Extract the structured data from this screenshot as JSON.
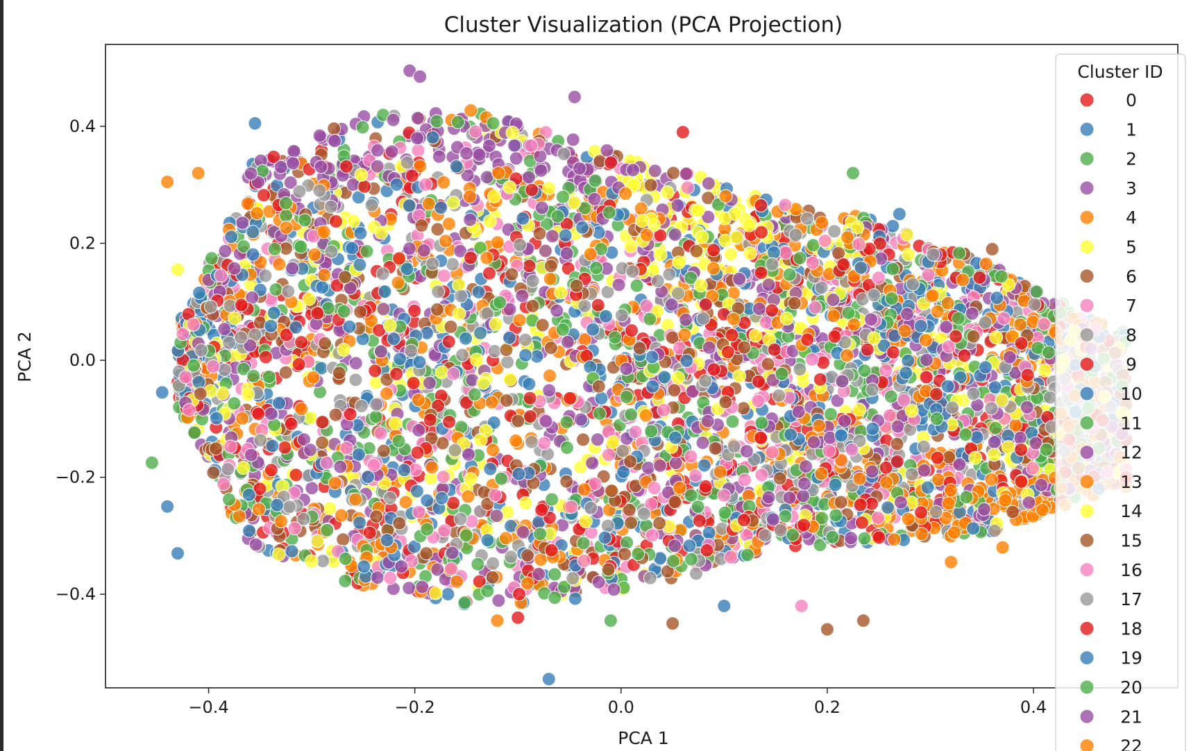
{
  "chart_data": {
    "type": "scatter",
    "title": "Cluster Visualization (PCA Projection)",
    "xlabel": "PCA 1",
    "ylabel": "PCA 2",
    "xlim": [
      -0.5,
      0.54
    ],
    "ylim": [
      -0.56,
      0.54
    ],
    "xticks": [
      -0.4,
      -0.2,
      0.0,
      0.2,
      0.4
    ],
    "xtick_labels": [
      "−0.4",
      "−0.2",
      "0.0",
      "0.2",
      "0.4"
    ],
    "yticks": [
      -0.4,
      -0.2,
      0.0,
      0.2,
      0.4
    ],
    "ytick_labels": [
      "−0.4",
      "−0.2",
      "0.0",
      "0.2",
      "0.4"
    ],
    "grid": false,
    "legend": {
      "title": "Cluster ID",
      "placement": "upper right",
      "entries": [
        "0",
        "1",
        "2",
        "3",
        "4",
        "5",
        "6",
        "7",
        "8",
        "9",
        "10",
        "11",
        "12",
        "13",
        "14",
        "15",
        "16",
        "17",
        "18",
        "19",
        "20",
        "21",
        "22"
      ]
    },
    "palette": [
      "#e41a1c",
      "#377eb8",
      "#4daf4a",
      "#984ea3",
      "#ff7f00",
      "#ffff33",
      "#a65628",
      "#f781bf",
      "#999999"
    ],
    "marker_opacity": 0.8,
    "series_note_points": "Thousands of overlapping points per cluster; representative outliers listed, the dense body is rendered procedurally within the visible extent.",
    "outliers": [
      {
        "x": -0.07,
        "y": -0.545,
        "cluster": "1"
      },
      {
        "x": -0.205,
        "y": 0.495,
        "cluster": "3"
      },
      {
        "x": -0.195,
        "y": 0.485,
        "cluster": "3"
      },
      {
        "x": -0.045,
        "y": 0.45,
        "cluster": "3"
      },
      {
        "x": -0.355,
        "y": 0.405,
        "cluster": "1"
      },
      {
        "x": -0.44,
        "y": 0.305,
        "cluster": "4"
      },
      {
        "x": -0.41,
        "y": 0.32,
        "cluster": "4"
      },
      {
        "x": -0.455,
        "y": -0.175,
        "cluster": "2"
      },
      {
        "x": -0.445,
        "y": -0.055,
        "cluster": "1"
      },
      {
        "x": -0.44,
        "y": -0.25,
        "cluster": "1"
      },
      {
        "x": -0.43,
        "y": -0.33,
        "cluster": "1"
      },
      {
        "x": -0.43,
        "y": 0.155,
        "cluster": "5"
      },
      {
        "x": -0.425,
        "y": 0.045,
        "cluster": "7"
      },
      {
        "x": 0.225,
        "y": 0.32,
        "cluster": "2"
      },
      {
        "x": 0.1,
        "y": -0.42,
        "cluster": "1"
      },
      {
        "x": 0.175,
        "y": -0.42,
        "cluster": "7"
      },
      {
        "x": 0.2,
        "y": -0.46,
        "cluster": "6"
      },
      {
        "x": 0.235,
        "y": -0.445,
        "cluster": "6"
      },
      {
        "x": 0.05,
        "y": -0.45,
        "cluster": "6"
      },
      {
        "x": -0.01,
        "y": -0.445,
        "cluster": "2"
      },
      {
        "x": 0.06,
        "y": 0.39,
        "cluster": "0"
      },
      {
        "x": 0.27,
        "y": 0.25,
        "cluster": "1"
      },
      {
        "x": 0.36,
        "y": 0.19,
        "cluster": "6"
      },
      {
        "x": 0.32,
        "y": -0.345,
        "cluster": "4"
      },
      {
        "x": 0.37,
        "y": -0.32,
        "cluster": "4"
      },
      {
        "x": -0.12,
        "y": -0.445,
        "cluster": "4"
      },
      {
        "x": -0.1,
        "y": -0.44,
        "cluster": "0"
      }
    ]
  }
}
